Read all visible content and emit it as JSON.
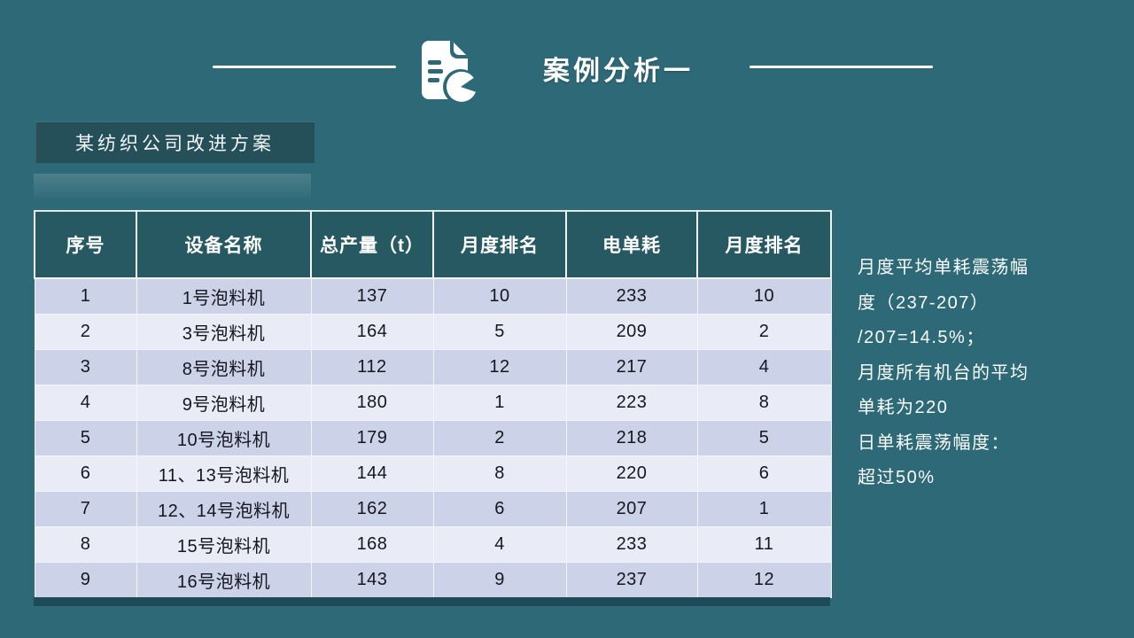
{
  "header": {
    "title": "案例分析一"
  },
  "subtitle": {
    "label": "某纺织公司改进方案"
  },
  "table": {
    "headers": [
      "序号",
      "设备名称",
      "总产量（t）",
      "月度排名",
      "电单耗",
      "月度排名"
    ],
    "rows": [
      [
        "1",
        "1号泡料机",
        "137",
        "10",
        "233",
        "10"
      ],
      [
        "2",
        "3号泡料机",
        "164",
        "5",
        "209",
        "2"
      ],
      [
        "3",
        "8号泡料机",
        "112",
        "12",
        "217",
        "4"
      ],
      [
        "4",
        "9号泡料机",
        "180",
        "1",
        "223",
        "8"
      ],
      [
        "5",
        "10号泡料机",
        "179",
        "2",
        "218",
        "5"
      ],
      [
        "6",
        "11、13号泡料机",
        "144",
        "8",
        "220",
        "6"
      ],
      [
        "7",
        "12、14号泡料机",
        "162",
        "6",
        "207",
        "1"
      ],
      [
        "8",
        "15号泡料机",
        "168",
        "4",
        "233",
        "11"
      ],
      [
        "9",
        "16号泡料机",
        "143",
        "9",
        "237",
        "12"
      ]
    ]
  },
  "side_note": {
    "lines": [
      "月度平均单耗震荡幅",
      "度（237-207）",
      "/207=14.5%；",
      "月度所有机台的平均",
      "单耗为220",
      "日单耗震荡幅度：",
      "超过50%"
    ]
  },
  "colors": {
    "background": "#2e6977",
    "table_header": "#275962",
    "subtitle_box": "#254f59",
    "row_odd": "#ccd3e9",
    "row_even": "#e9ecf6",
    "bottom_strip": "#1d4b57",
    "text_light": "#ffffff",
    "text_dark": "#16161e"
  }
}
